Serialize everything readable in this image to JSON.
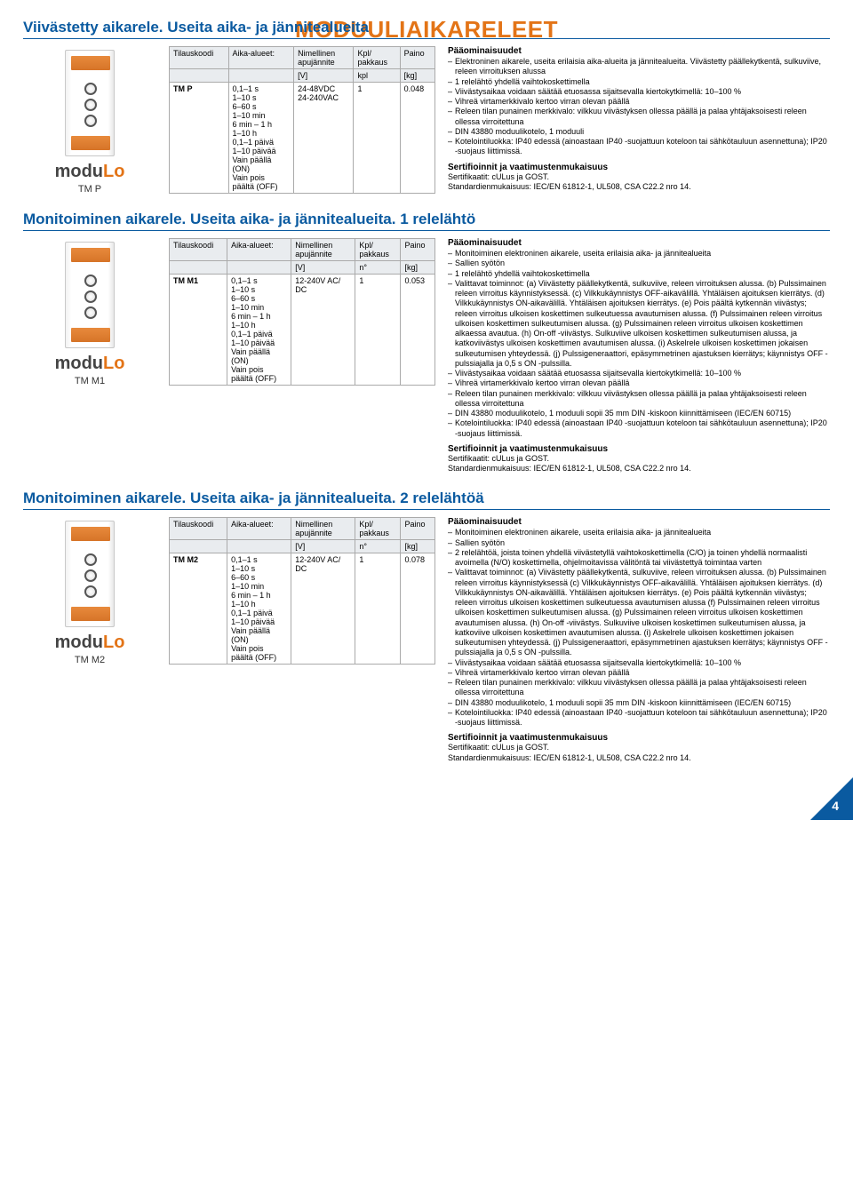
{
  "main_title": "MODUULIAIKARELEET",
  "page_number": "4",
  "table_headers": {
    "code": "Tilauskoodi",
    "ranges": "Aika-alueet:",
    "voltage_l1": "Nimellinen",
    "voltage_l2": "apujännite",
    "qty_l1": "Kpl/",
    "qty_l2": "pakkaus",
    "weight": "Paino",
    "u_volt": "[V]",
    "u_qty_kpl": "kpl",
    "u_qty_n": "n°",
    "u_weight": "[kg]"
  },
  "common": {
    "cert_head": "Sertifioinnit ja vaatimustenmukaisuus",
    "cert_l1": "Sertifikaatit: cULus ja GOST.",
    "cert_l2": "Standardienmukaisuus: IEC/EN 61812-1, UL508, CSA C22.2 nro 14.",
    "time_ranges": "0,1–1 s\n1–10 s\n6–60 s\n1–10 min\n6 min – 1 h\n1–10 h\n0,1–1 päivä\n1–10 päivää\nVain päällä\n(ON)\nVain pois\npäältä (OFF)"
  },
  "sections": [
    {
      "title": "Viivästetty aikarele. Useita aika- ja jännitealueita",
      "code": "TM P",
      "voltage": "24-48VDC\n24-240VAC",
      "qty": "1",
      "qty_unit": "kpl",
      "weight": "0.048",
      "feat_head": "Pääominaisuudet",
      "features": [
        "Elektroninen aikarele, useita erilaisia aika-alueita ja jännitealueita. Viivästetty päällekytkentä, sulkuviive, releen virroituksen alussa",
        "1 relelähtö yhdellä vaihtokoskettimella",
        "Viivästysaikaa voidaan säätää etuosassa sijaitsevalla kiertokytkimellä: 10–100 %",
        "Vihreä virtamerkkivalo kertoo virran olevan päällä",
        "Releen tilan punainen merkkivalo: vilkkuu viivästyksen ollessa päällä ja palaa yhtäjaksoisesti releen ollessa virroitettuna",
        "DIN 43880 moduulikotelo, 1 moduuli",
        "Kotelointiluokka: IP40 edessä (ainoastaan IP40 -suojattuun koteloon tai sähkötauluun asennettuna); IP20 -suojaus liittimissä."
      ]
    },
    {
      "title": "Monitoiminen aikarele. Useita aika- ja jännitealueita. 1 relelähtö",
      "code": "TM M1",
      "voltage": "12-240V AC/\nDC",
      "qty": "1",
      "qty_unit": "n°",
      "weight": "0.053",
      "feat_head": "Pääominaisuudet",
      "features": [
        "Monitoiminen elektroninen aikarele, useita erilaisia aika- ja jännitealueita",
        "Sallien syötön",
        "1 relelähtö yhdellä vaihtokoskettimella",
        "Valittavat toiminnot: (a) Viivästetty päällekytkentä, sulkuviive, releen virroituksen alussa. (b) Pulssimainen releen virroitus käynnistyksessä. (c) Vilkkukäynnistys OFF-aikavälillä. Yhtäläisen ajoituksen kierrätys. (d) Vilkkukäynnistys ON-aikavälillä. Yhtäläisen ajoituksen kierrätys. (e) Pois päältä kytkennän viivästys; releen virroitus ulkoisen koskettimen sulkeutuessa avautumisen alussa. (f) Pulssimainen releen virroitus ulkoisen koskettimen sulkeutumisen alussa. (g) Pulssimainen releen virroitus ulkoisen koskettimen alkaessa avautua. (h) On-off -viivästys. Sulkuviive ulkoisen koskettimen sulkeutumisen alussa, ja katkoviivästys ulkoisen koskettimen avautumisen alussa. (i) Askelrele ulkoisen koskettimen jokaisen sulkeutumisen yhteydessä. (j) Pulssigeneraattori, epäsymmetrinen ajastuksen kierrätys; käynnistys OFF -pulssiajalla ja 0,5 s ON -pulssilla.",
        "Viivästysaikaa voidaan säätää etuosassa sijaitsevalla kiertokytkimellä: 10–100 %",
        "Vihreä virtamerkkivalo kertoo virran olevan päällä",
        "Releen tilan punainen merkkivalo: vilkkuu viivästyksen ollessa päällä ja palaa yhtäjaksoisesti releen ollessa virroitettuna",
        "DIN 43880 moduulikotelo, 1 moduuli sopii 35 mm DIN -kiskoon kiinnittämiseen (IEC/EN 60715)",
        "Kotelointiluokka: IP40 edessä (ainoastaan IP40 -suojattuun koteloon tai sähkötauluun asennettuna); IP20 -suojaus liittimissä."
      ]
    },
    {
      "title": "Monitoiminen aikarele. Useita aika- ja jännitealueita. 2 relelähtöä",
      "code": "TM M2",
      "voltage": "12-240V AC/\nDC",
      "qty": "1",
      "qty_unit": "n°",
      "weight": "0.078",
      "feat_head": "Pääominaisuudet",
      "features": [
        "Monitoiminen elektroninen aikarele, useita erilaisia aika- ja jännitealueita",
        "Sallien syötön",
        "2 relelähtöä, joista toinen yhdellä viivästetyllä vaihtokoskettimella (C/O) ja toinen yhdellä normaalisti avoimella (N/O) koskettimella, ohjelmoitavissa välitöntä tai viivästettyä toimintaa varten",
        "Valittavat toiminnot: (a) Viivästetty päällekytkentä, sulkuviive, releen virroituksen alussa. (b) Pulssimainen releen virroitus käynnistyksessä (c) Vilkkukäynnistys OFF-aikavälillä. Yhtäläisen ajoituksen kierrätys. (d) Vilkkukäynnistys ON-aikavälillä. Yhtäläisen ajoituksen kierrätys. (e) Pois päältä kytkennän viivästys; releen virroitus ulkoisen koskettimen sulkeutuessa avautumisen alussa (f) Pulssimainen releen virroitus ulkoisen koskettimen sulkeutumisen alussa. (g) Pulssimainen releen virroitus ulkoisen koskettimen avautumisen alussa. (h) On-off -viivästys. Sulkuviive ulkoisen koskettimen sulkeutumisen alussa, ja katkoviive ulkoisen koskettimen avautumisen alussa. (i) Askelrele ulkoisen koskettimen jokaisen sulkeutumisen yhteydessä. (j) Pulssigeneraattori, epäsymmetrinen ajastuksen kierrätys; käynnistys OFF -pulssiajalla ja 0,5 s ON -pulssilla.",
        "Viivästysaikaa voidaan säätää etuosassa sijaitsevalla kiertokytkimellä: 10–100 %",
        "Vihreä virtamerkkivalo kertoo virran olevan päällä",
        "Releen tilan punainen merkkivalo: vilkkuu viivästyksen ollessa päällä ja palaa yhtäjaksoisesti releen ollessa virroitettuna",
        "DIN 43880 moduulikotelo, 1 moduuli sopii 35 mm DIN -kiskoon kiinnittämiseen (IEC/EN 60715)",
        "Kotelointiluokka: IP40 edessä (ainoastaan IP40 -suojattuun koteloon tai sähkötauluun asennettuna); IP20 -suojaus liittimissä."
      ]
    }
  ]
}
